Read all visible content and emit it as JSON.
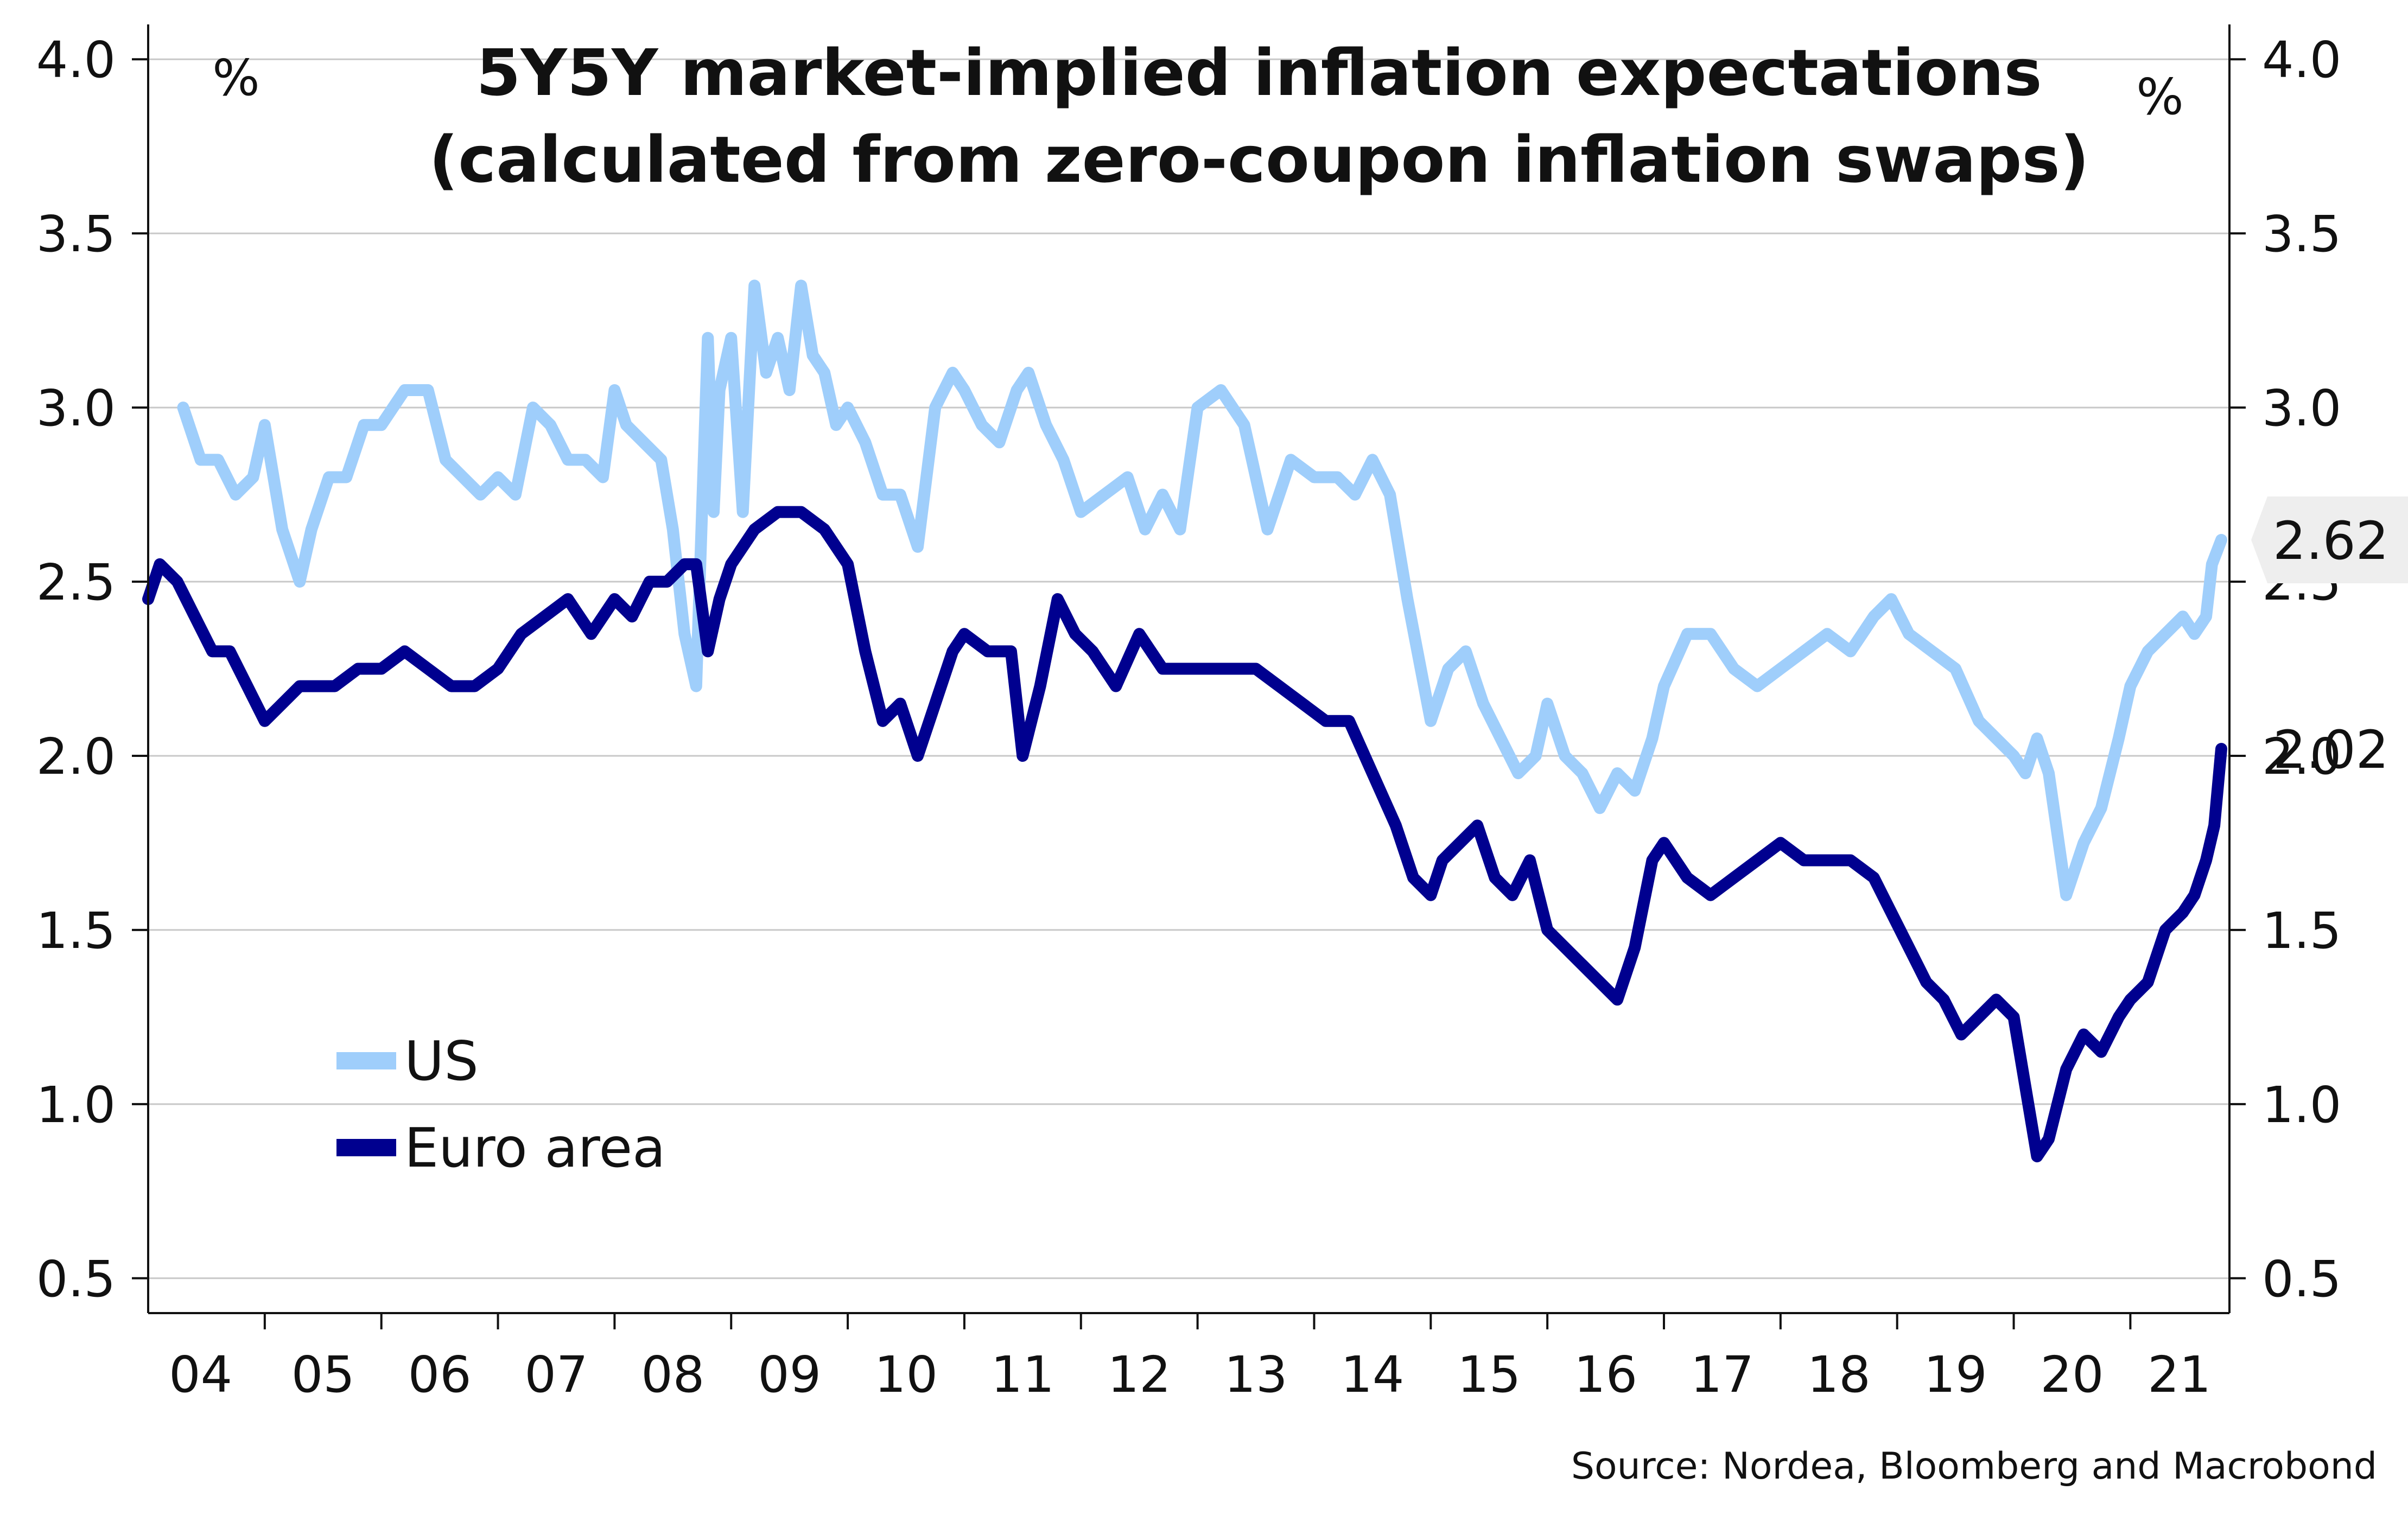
{
  "colors": {
    "us": "#9fcefb",
    "euro_area": "#00008f",
    "grid": "#c8c8c8",
    "axis": "#111111",
    "badge_background": "#eeeeee"
  },
  "source": "Source: Nordea, Bloomberg and Macrobond",
  "chart_data": {
    "type": "line",
    "title": "5Y5Y market-implied inflation expectations",
    "subtitle": "(calculated from zero-coupon inflation swaps)",
    "ylabel_left": "%",
    "ylabel_right": "%",
    "ylim": [
      0.4,
      4.1
    ],
    "yticks": [
      0.5,
      1.0,
      1.5,
      2.0,
      2.5,
      3.0,
      3.5,
      4.0
    ],
    "ytick_labels": [
      "0.5",
      "1.0",
      "1.5",
      "2.0",
      "2.5",
      "3.0",
      "3.5",
      "4.0"
    ],
    "xlim": [
      2004.0,
      2021.85
    ],
    "x_tick_labels": [
      "04",
      "05",
      "06",
      "07",
      "08",
      "09",
      "10",
      "11",
      "12",
      "13",
      "14",
      "15",
      "16",
      "17",
      "18",
      "19",
      "20",
      "21"
    ],
    "grid": true,
    "legend_position": "bottom-left",
    "series": [
      {
        "name": "US",
        "color_key": "us",
        "last_value_label": "2.62",
        "x": [
          2004.3,
          2004.45,
          2004.6,
          2004.75,
          2004.9,
          2005.0,
          2005.15,
          2005.3,
          2005.4,
          2005.55,
          2005.7,
          2005.85,
          2006.0,
          2006.2,
          2006.4,
          2006.55,
          2006.7,
          2006.85,
          2007.0,
          2007.15,
          2007.3,
          2007.45,
          2007.6,
          2007.75,
          2007.9,
          2008.0,
          2008.1,
          2008.25,
          2008.4,
          2008.5,
          2008.6,
          2008.7,
          2008.8,
          2008.85,
          2008.9,
          2009.0,
          2009.1,
          2009.2,
          2009.3,
          2009.4,
          2009.5,
          2009.6,
          2009.7,
          2009.8,
          2009.9,
          2010.0,
          2010.15,
          2010.3,
          2010.45,
          2010.6,
          2010.75,
          2010.9,
          2011.0,
          2011.15,
          2011.3,
          2011.45,
          2011.55,
          2011.7,
          2011.85,
          2012.0,
          2012.2,
          2012.4,
          2012.55,
          2012.7,
          2012.85,
          2013.0,
          2013.2,
          2013.4,
          2013.6,
          2013.8,
          2014.0,
          2014.2,
          2014.35,
          2014.5,
          2014.65,
          2014.8,
          2015.0,
          2015.15,
          2015.3,
          2015.45,
          2015.6,
          2015.75,
          2015.9,
          2016.0,
          2016.15,
          2016.3,
          2016.45,
          2016.6,
          2016.75,
          2016.9,
          2017.0,
          2017.2,
          2017.4,
          2017.6,
          2017.8,
          2018.0,
          2018.2,
          2018.4,
          2018.6,
          2018.8,
          2018.95,
          2019.1,
          2019.3,
          2019.5,
          2019.7,
          2019.85,
          2020.0,
          2020.1,
          2020.2,
          2020.3,
          2020.45,
          2020.6,
          2020.75,
          2020.9,
          2021.0,
          2021.15,
          2021.3,
          2021.45,
          2021.55,
          2021.65,
          2021.7,
          2021.78
        ],
        "y": [
          3.0,
          2.85,
          2.85,
          2.75,
          2.8,
          2.95,
          2.65,
          2.5,
          2.65,
          2.8,
          2.8,
          2.95,
          2.95,
          3.05,
          3.05,
          2.85,
          2.8,
          2.75,
          2.8,
          2.75,
          3.0,
          2.95,
          2.85,
          2.85,
          2.8,
          3.05,
          2.95,
          2.9,
          2.85,
          2.65,
          2.35,
          2.2,
          3.2,
          2.7,
          3.05,
          3.2,
          2.7,
          3.35,
          3.1,
          3.2,
          3.05,
          3.35,
          3.15,
          3.1,
          2.95,
          3.0,
          2.9,
          2.75,
          2.75,
          2.6,
          3.0,
          3.1,
          3.05,
          2.95,
          2.9,
          3.05,
          3.1,
          2.95,
          2.85,
          2.7,
          2.75,
          2.8,
          2.65,
          2.75,
          2.65,
          3.0,
          3.05,
          2.95,
          2.65,
          2.85,
          2.8,
          2.8,
          2.75,
          2.85,
          2.75,
          2.45,
          2.1,
          2.25,
          2.3,
          2.15,
          2.05,
          1.95,
          2.0,
          2.15,
          2.0,
          1.95,
          1.85,
          1.95,
          1.9,
          2.05,
          2.2,
          2.35,
          2.35,
          2.25,
          2.2,
          2.25,
          2.3,
          2.35,
          2.3,
          2.4,
          2.45,
          2.35,
          2.3,
          2.25,
          2.1,
          2.05,
          2.0,
          1.95,
          2.05,
          1.95,
          1.6,
          1.75,
          1.85,
          2.05,
          2.2,
          2.3,
          2.35,
          2.4,
          2.35,
          2.4,
          2.55,
          2.62
        ]
      },
      {
        "name": "Euro area",
        "color_key": "euro_area",
        "last_value_label": "2.02",
        "x": [
          2004.0,
          2004.1,
          2004.25,
          2004.4,
          2004.55,
          2004.7,
          2004.85,
          2005.0,
          2005.15,
          2005.3,
          2005.45,
          2005.6,
          2005.8,
          2006.0,
          2006.2,
          2006.4,
          2006.6,
          2006.8,
          2007.0,
          2007.2,
          2007.4,
          2007.6,
          2007.8,
          2008.0,
          2008.15,
          2008.3,
          2008.45,
          2008.6,
          2008.7,
          2008.8,
          2008.9,
          2009.0,
          2009.2,
          2009.4,
          2009.6,
          2009.8,
          2010.0,
          2010.15,
          2010.3,
          2010.45,
          2010.6,
          2010.75,
          2010.9,
          2011.0,
          2011.2,
          2011.4,
          2011.5,
          2011.65,
          2011.8,
          2011.95,
          2012.1,
          2012.3,
          2012.5,
          2012.7,
          2012.9,
          2013.1,
          2013.3,
          2013.5,
          2013.7,
          2013.9,
          2014.1,
          2014.3,
          2014.5,
          2014.7,
          2014.85,
          2015.0,
          2015.1,
          2015.25,
          2015.4,
          2015.55,
          2015.7,
          2015.85,
          2016.0,
          2016.15,
          2016.3,
          2016.45,
          2016.6,
          2016.75,
          2016.9,
          2017.0,
          2017.2,
          2017.4,
          2017.6,
          2017.8,
          2018.0,
          2018.2,
          2018.4,
          2018.6,
          2018.8,
          2018.95,
          2019.1,
          2019.25,
          2019.4,
          2019.55,
          2019.7,
          2019.85,
          2020.0,
          2020.1,
          2020.2,
          2020.3,
          2020.45,
          2020.6,
          2020.75,
          2020.9,
          2021.0,
          2021.15,
          2021.3,
          2021.45,
          2021.55,
          2021.65,
          2021.72,
          2021.78
        ],
        "y": [
          2.45,
          2.55,
          2.5,
          2.4,
          2.3,
          2.3,
          2.2,
          2.1,
          2.15,
          2.2,
          2.2,
          2.2,
          2.25,
          2.25,
          2.3,
          2.25,
          2.2,
          2.2,
          2.25,
          2.35,
          2.4,
          2.45,
          2.35,
          2.45,
          2.4,
          2.5,
          2.5,
          2.55,
          2.55,
          2.3,
          2.45,
          2.55,
          2.65,
          2.7,
          2.7,
          2.65,
          2.55,
          2.3,
          2.1,
          2.15,
          2.0,
          2.15,
          2.3,
          2.35,
          2.3,
          2.3,
          2.0,
          2.2,
          2.45,
          2.35,
          2.3,
          2.2,
          2.35,
          2.25,
          2.25,
          2.25,
          2.25,
          2.25,
          2.2,
          2.15,
          2.1,
          2.1,
          1.95,
          1.8,
          1.65,
          1.6,
          1.7,
          1.75,
          1.8,
          1.65,
          1.6,
          1.7,
          1.5,
          1.45,
          1.4,
          1.35,
          1.3,
          1.45,
          1.7,
          1.75,
          1.65,
          1.6,
          1.65,
          1.7,
          1.75,
          1.7,
          1.7,
          1.7,
          1.65,
          1.55,
          1.45,
          1.35,
          1.3,
          1.2,
          1.25,
          1.3,
          1.25,
          1.05,
          0.85,
          0.9,
          1.1,
          1.2,
          1.15,
          1.25,
          1.3,
          1.35,
          1.5,
          1.55,
          1.6,
          1.7,
          1.8,
          2.02
        ]
      }
    ]
  }
}
